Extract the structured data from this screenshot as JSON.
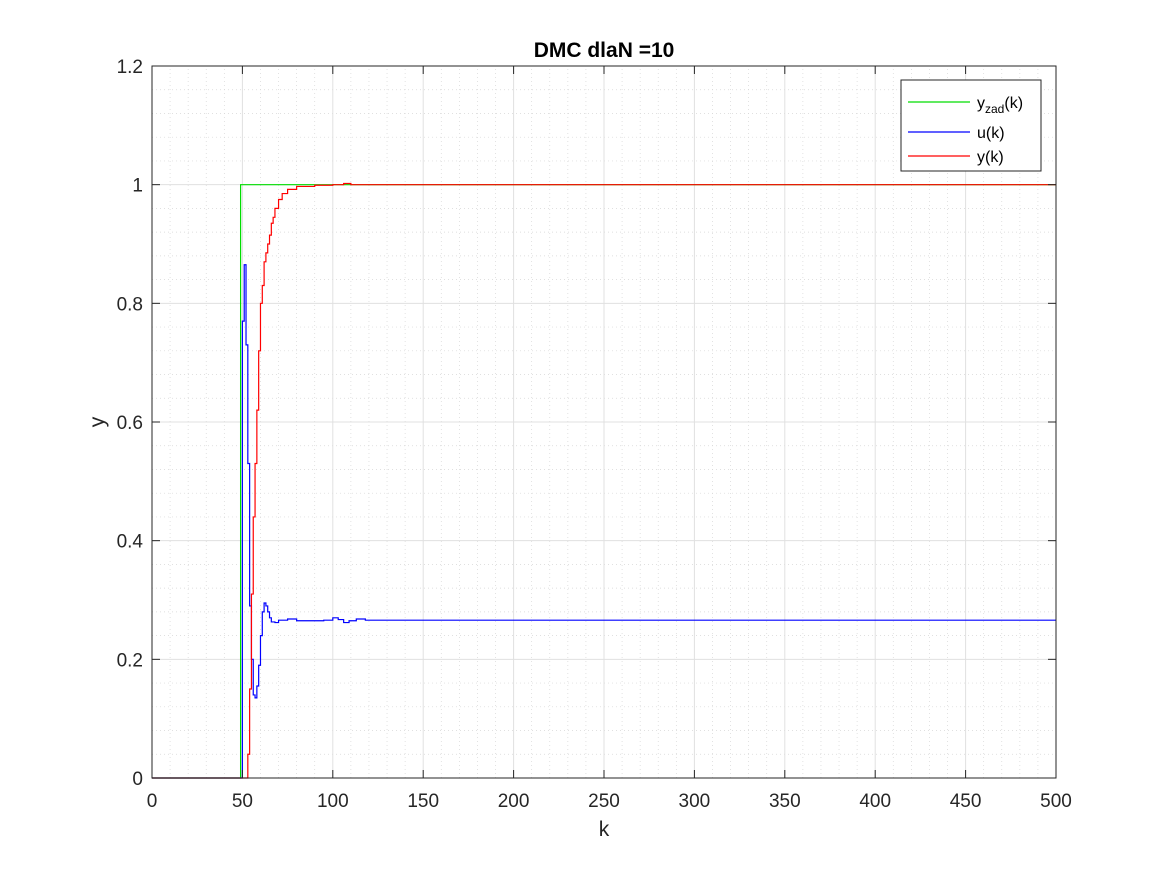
{
  "chart_data": {
    "type": "line",
    "title": "DMC dlaN =10",
    "xlabel": "k",
    "ylabel": "y",
    "xlim": [
      0,
      500
    ],
    "ylim": [
      0,
      1.2
    ],
    "xticks": [
      0,
      50,
      100,
      150,
      200,
      250,
      300,
      350,
      400,
      450,
      500
    ],
    "yticks": [
      0,
      0.2,
      0.4,
      0.6,
      0.8,
      1,
      1.2
    ],
    "xtick_labels": [
      "0",
      "50",
      "100",
      "150",
      "200",
      "250",
      "300",
      "350",
      "400",
      "450",
      "500"
    ],
    "ytick_labels": [
      "0",
      "0.2",
      "0.4",
      "0.6",
      "0.8",
      "1",
      "1.2"
    ],
    "grid": "major and minor",
    "legend_position": "top-right",
    "series": [
      {
        "name_base": "y",
        "name_sub": "zad",
        "name_tail": "(k)",
        "color": "#00dd00",
        "step": true,
        "points": [
          [
            0,
            0
          ],
          [
            49,
            0
          ],
          [
            49,
            1
          ],
          [
            500,
            1
          ]
        ]
      },
      {
        "name": "u(k)",
        "color": "#0000ff",
        "step": true,
        "points": [
          [
            0,
            0
          ],
          [
            49,
            0
          ],
          [
            50,
            0.77
          ],
          [
            51,
            0.865
          ],
          [
            52,
            0.73
          ],
          [
            53,
            0.53
          ],
          [
            54,
            0.29
          ],
          [
            55,
            0.2
          ],
          [
            56,
            0.14
          ],
          [
            57,
            0.135
          ],
          [
            58,
            0.155
          ],
          [
            59,
            0.19
          ],
          [
            60,
            0.24
          ],
          [
            61,
            0.28
          ],
          [
            62,
            0.295
          ],
          [
            63,
            0.29
          ],
          [
            64,
            0.28
          ],
          [
            65,
            0.27
          ],
          [
            66,
            0.263
          ],
          [
            68,
            0.262
          ],
          [
            70,
            0.266
          ],
          [
            75,
            0.268
          ],
          [
            80,
            0.265
          ],
          [
            95,
            0.266
          ],
          [
            100,
            0.27
          ],
          [
            103,
            0.267
          ],
          [
            106,
            0.262
          ],
          [
            109,
            0.265
          ],
          [
            113,
            0.268
          ],
          [
            118,
            0.266
          ],
          [
            500,
            0.266
          ]
        ]
      },
      {
        "name": "y(k)",
        "color": "#ff0000",
        "step": true,
        "points": [
          [
            0,
            0
          ],
          [
            52,
            0
          ],
          [
            53,
            0.04
          ],
          [
            54,
            0.15
          ],
          [
            55,
            0.31
          ],
          [
            56,
            0.44
          ],
          [
            57,
            0.53
          ],
          [
            58,
            0.62
          ],
          [
            59,
            0.72
          ],
          [
            60,
            0.8
          ],
          [
            61,
            0.83
          ],
          [
            62,
            0.87
          ],
          [
            63,
            0.885
          ],
          [
            64,
            0.9
          ],
          [
            65,
            0.915
          ],
          [
            66,
            0.935
          ],
          [
            67,
            0.945
          ],
          [
            68,
            0.96
          ],
          [
            70,
            0.975
          ],
          [
            72,
            0.985
          ],
          [
            75,
            0.992
          ],
          [
            80,
            0.997
          ],
          [
            90,
            0.999
          ],
          [
            100,
            1.0
          ],
          [
            106,
            1.002
          ],
          [
            110,
            1.0
          ],
          [
            500,
            1.0
          ]
        ]
      }
    ]
  }
}
